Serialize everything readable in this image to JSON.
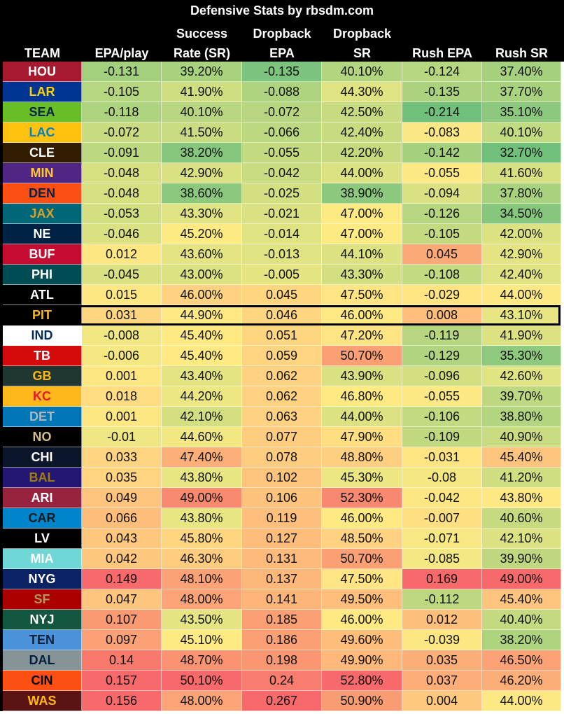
{
  "title": "Defensive Stats by rbsdm.com",
  "headers": [
    [
      "",
      "TEAM"
    ],
    [
      "",
      "EPA/play"
    ],
    [
      "Success",
      "Rate (SR)"
    ],
    [
      "Dropback",
      "EPA"
    ],
    [
      "Dropback",
      "SR"
    ],
    [
      "",
      "Rush EPA"
    ],
    [
      "",
      "Rush SR"
    ]
  ],
  "highlighted_team": "PIT",
  "rows": [
    {
      "team": "HOU",
      "bg": "#a6192e",
      "fg": "#ffffff",
      "cells": [
        "-0.131",
        "39.20%",
        "-0.135",
        "40.10%",
        "-0.124",
        "37.40%"
      ],
      "colors": [
        "#a3d07d",
        "#a8d27e",
        "#7cc47d",
        "#b3d580",
        "#b6d680",
        "#a5d17e"
      ]
    },
    {
      "team": "LAR",
      "bg": "#003594",
      "fg": "#ffd100",
      "cells": [
        "-0.105",
        "41.90%",
        "-0.088",
        "44.30%",
        "-0.135",
        "37.70%"
      ],
      "colors": [
        "#b6d680",
        "#cfde81",
        "#aed37f",
        "#dfe382",
        "#abd27e",
        "#a8d27e"
      ]
    },
    {
      "team": "SEA",
      "bg": "#69be28",
      "fg": "#002244",
      "cells": [
        "-0.118",
        "40.10%",
        "-0.072",
        "42.50%",
        "-0.214",
        "35.10%"
      ],
      "colors": [
        "#aed37f",
        "#b8d680",
        "#b8d680",
        "#c8db80",
        "#70c07c",
        "#8cc87d"
      ]
    },
    {
      "team": "LAC",
      "bg": "#ffc20e",
      "fg": "#0080c6",
      "cells": [
        "-0.072",
        "41.50%",
        "-0.066",
        "42.40%",
        "-0.083",
        "40.10%"
      ],
      "colors": [
        "#c8db80",
        "#cadc81",
        "#bcd880",
        "#c8db80",
        "#f9e883",
        "#c2da80"
      ]
    },
    {
      "team": "CLE",
      "bg": "#311d00",
      "fg": "#ffffff",
      "cells": [
        "-0.091",
        "38.20%",
        "-0.055",
        "42.20%",
        "-0.142",
        "32.70%"
      ],
      "colors": [
        "#bcd880",
        "#86c77d",
        "#c4da80",
        "#c6db80",
        "#a5d17e",
        "#70c07c"
      ]
    },
    {
      "team": "MIN",
      "bg": "#4f2683",
      "fg": "#ffc62f",
      "cells": [
        "-0.048",
        "42.90%",
        "-0.042",
        "44.00%",
        "-0.055",
        "41.60%"
      ],
      "colors": [
        "#d6e081",
        "#d9e182",
        "#cadc81",
        "#dce282",
        "#fce983",
        "#d6e081"
      ]
    },
    {
      "team": "DEN",
      "bg": "#fb4f14",
      "fg": "#002244",
      "cells": [
        "-0.048",
        "38.60%",
        "-0.025",
        "38.90%",
        "-0.094",
        "37.80%"
      ],
      "colors": [
        "#d6e081",
        "#8cc87d",
        "#d3df81",
        "#8cc87d",
        "#d9e182",
        "#a8d27e"
      ]
    },
    {
      "team": "JAX",
      "bg": "#006778",
      "fg": "#d7a22a",
      "cells": [
        "-0.053",
        "43.30%",
        "-0.021",
        "47.00%",
        "-0.126",
        "34.50%"
      ],
      "colors": [
        "#d3df81",
        "#dfe382",
        "#d9e182",
        "#feea83",
        "#b6d680",
        "#86c77d"
      ]
    },
    {
      "team": "NE",
      "bg": "#002244",
      "fg": "#ffffff",
      "cells": [
        "-0.046",
        "45.20%",
        "-0.014",
        "47.00%",
        "-0.105",
        "42.00%"
      ],
      "colors": [
        "#d9e182",
        "#feea83",
        "#dfe382",
        "#feea83",
        "#c4da80",
        "#dce282"
      ]
    },
    {
      "team": "BUF",
      "bg": "#c60c30",
      "fg": "#ffffff",
      "cells": [
        "0.012",
        "43.60%",
        "-0.013",
        "44.10%",
        "0.045",
        "42.90%"
      ],
      "colors": [
        "#fde783",
        "#e4e582",
        "#dfe382",
        "#dce282",
        "#fbaa77",
        "#e4e582"
      ]
    },
    {
      "team": "PHI",
      "bg": "#004c54",
      "fg": "#ffffff",
      "cells": [
        "-0.045",
        "43.00%",
        "-0.005",
        "43.30%",
        "-0.108",
        "42.40%"
      ],
      "colors": [
        "#d9e182",
        "#dce282",
        "#e4e582",
        "#d3df81",
        "#c2da80",
        "#dfe382"
      ]
    },
    {
      "team": "ATL",
      "bg": "#000000",
      "fg": "#ffffff",
      "cells": [
        "0.015",
        "46.00%",
        "0.045",
        "47.50%",
        "-0.029",
        "44.00%"
      ],
      "colors": [
        "#fde783",
        "#fed280",
        "#fed680",
        "#fee482",
        "#fee582",
        "#fce983"
      ]
    },
    {
      "team": "PIT",
      "bg": "#000000",
      "fg": "#ffb612",
      "cells": [
        "0.031",
        "44.90%",
        "0.046",
        "46.00%",
        "0.008",
        "43.10%"
      ],
      "colors": [
        "#fed680",
        "#fee982",
        "#fed680",
        "#fee982",
        "#fdbf7b",
        "#e7e682"
      ]
    },
    {
      "team": "IND",
      "bg": "#ffffff",
      "fg": "#002c5f",
      "cells": [
        "-0.008",
        "45.40%",
        "0.051",
        "47.20%",
        "-0.119",
        "41.90%"
      ],
      "colors": [
        "#f2e883",
        "#fee982",
        "#fed680",
        "#fee482",
        "#b8d680",
        "#dce282"
      ]
    },
    {
      "team": "TB",
      "bg": "#d50a0a",
      "fg": "#ffffff",
      "cells": [
        "-0.006",
        "45.40%",
        "0.059",
        "50.70%",
        "-0.129",
        "35.30%"
      ],
      "colors": [
        "#f5e883",
        "#fee982",
        "#fed480",
        "#fb9f74",
        "#b0d47f",
        "#8fc97d"
      ]
    },
    {
      "team": "GB",
      "bg": "#203731",
      "fg": "#ffb612",
      "cells": [
        "0.001",
        "43.40%",
        "0.062",
        "43.90%",
        "-0.096",
        "42.60%"
      ],
      "colors": [
        "#fde783",
        "#e4e582",
        "#fed280",
        "#d9e182",
        "#d3df81",
        "#e1e482"
      ]
    },
    {
      "team": "KC",
      "bg": "#ffb81c",
      "fg": "#e31837",
      "cells": [
        "0.018",
        "44.20%",
        "0.062",
        "46.80%",
        "-0.055",
        "39.70%"
      ],
      "colors": [
        "#fedc81",
        "#ece782",
        "#fed280",
        "#fee982",
        "#fce983",
        "#bcd880"
      ]
    },
    {
      "team": "DET",
      "bg": "#0076b6",
      "fg": "#b0b7bc",
      "cells": [
        "0.001",
        "42.10%",
        "0.063",
        "44.00%",
        "-0.106",
        "38.80%"
      ],
      "colors": [
        "#fde783",
        "#d3df81",
        "#fed280",
        "#dce282",
        "#c2da80",
        "#b3d580"
      ]
    },
    {
      "team": "NO",
      "bg": "#000000",
      "fg": "#d3bc8d",
      "cells": [
        "-0.01",
        "44.60%",
        "0.077",
        "47.90%",
        "-0.109",
        "40.90%"
      ],
      "colors": [
        "#eee783",
        "#f2e883",
        "#fecc7f",
        "#fede81",
        "#c0d880",
        "#cadc81"
      ]
    },
    {
      "team": "CHI",
      "bg": "#0b162a",
      "fg": "#ffffff",
      "cells": [
        "0.033",
        "47.40%",
        "0.078",
        "48.80%",
        "-0.031",
        "45.40%"
      ],
      "colors": [
        "#fed480",
        "#fcaf78",
        "#fecc7f",
        "#fecf7f",
        "#fee582",
        "#fdc47d"
      ]
    },
    {
      "team": "BAL",
      "bg": "#241773",
      "fg": "#9e7c0c",
      "cells": [
        "0.035",
        "43.80%",
        "0.102",
        "45.30%",
        "-0.08",
        "41.20%"
      ],
      "colors": [
        "#fed480",
        "#e7e682",
        "#fdc47d",
        "#ece782",
        "#f5e883",
        "#ceDE81"
      ]
    },
    {
      "team": "ARI",
      "bg": "#97233f",
      "fg": "#ffffff",
      "cells": [
        "0.049",
        "49.00%",
        "0.106",
        "52.30%",
        "-0.042",
        "43.80%"
      ],
      "colors": [
        "#fdc47d",
        "#f98a6f",
        "#fdc27c",
        "#f98870",
        "#fde783",
        "#fde883"
      ]
    },
    {
      "team": "CAR",
      "bg": "#0085ca",
      "fg": "#101820",
      "cells": [
        "0.066",
        "43.80%",
        "0.119",
        "46.00%",
        "-0.007",
        "40.60%"
      ],
      "colors": [
        "#fdbd7b",
        "#e7e682",
        "#fdbf7b",
        "#fee982",
        "#fee082",
        "#c6db80"
      ]
    },
    {
      "team": "LV",
      "bg": "#000000",
      "fg": "#ffffff",
      "cells": [
        "0.043",
        "45.80%",
        "0.127",
        "48.50%",
        "-0.071",
        "42.10%"
      ],
      "colors": [
        "#fdc87e",
        "#fed680",
        "#fdbd7b",
        "#fed280",
        "#f8e883",
        "#dce282"
      ]
    },
    {
      "team": "MIA",
      "bg": "#6fd8d6",
      "fg": "#ffffff",
      "cells": [
        "0.042",
        "46.30%",
        "0.131",
        "50.70%",
        "-0.085",
        "39.90%"
      ],
      "colors": [
        "#fdc87e",
        "#fdcc7f",
        "#fdba7a",
        "#fb9f74",
        "#f4e883",
        "#bfd880"
      ]
    },
    {
      "team": "NYG",
      "bg": "#0b2265",
      "fg": "#ffffff",
      "cells": [
        "0.149",
        "48.10%",
        "0.137",
        "47.50%",
        "0.169",
        "49.00%"
      ],
      "colors": [
        "#f8696b",
        "#fca276",
        "#fdb879",
        "#fee482",
        "#f8696b",
        "#f8696b"
      ]
    },
    {
      "team": "SF",
      "bg": "#aa0000",
      "fg": "#b3995d",
      "cells": [
        "0.047",
        "48.00%",
        "0.141",
        "49.50%",
        "-0.112",
        "45.40%"
      ],
      "colors": [
        "#fdc57d",
        "#fca477",
        "#fdb579",
        "#fdbf7b",
        "#bed880",
        "#fdc47d"
      ]
    },
    {
      "team": "NYJ",
      "bg": "#125740",
      "fg": "#ffffff",
      "cells": [
        "0.107",
        "43.50%",
        "0.185",
        "46.00%",
        "0.012",
        "40.40%"
      ],
      "colors": [
        "#fa9a73",
        "#e4e582",
        "#fb9f74",
        "#fee982",
        "#fdc07c",
        "#c4da80"
      ]
    },
    {
      "team": "TEN",
      "bg": "#4b92db",
      "fg": "#0c2340",
      "cells": [
        "0.097",
        "45.10%",
        "0.186",
        "49.60%",
        "-0.039",
        "38.20%"
      ],
      "colors": [
        "#fba175",
        "#feea83",
        "#fb9f74",
        "#fdbd7b",
        "#fde783",
        "#adD37f"
      ]
    },
    {
      "team": "DAL",
      "bg": "#869397",
      "fg": "#041e42",
      "cells": [
        "0.14",
        "48.70%",
        "0.198",
        "49.90%",
        "0.035",
        "46.50%"
      ],
      "colors": [
        "#f97a6d",
        "#fb9373",
        "#fb9672",
        "#fdb87a",
        "#fcae78",
        "#fca276"
      ]
    },
    {
      "team": "CIN",
      "bg": "#fb4f14",
      "fg": "#000000",
      "cells": [
        "0.157",
        "50.10%",
        "0.24",
        "52.80%",
        "0.037",
        "46.20%"
      ],
      "colors": [
        "#f8696b",
        "#f8696b",
        "#f97d6e",
        "#f8696b",
        "#fcad78",
        "#fcae78"
      ]
    },
    {
      "team": "WAS",
      "bg": "#5a1414",
      "fg": "#ffb612",
      "cells": [
        "0.156",
        "48.00%",
        "0.267",
        "50.90%",
        "0.004",
        "44.00%"
      ],
      "colors": [
        "#f8696b",
        "#fca477",
        "#f8696b",
        "#fa9c73",
        "#fec87e",
        "#fce983"
      ]
    }
  ]
}
